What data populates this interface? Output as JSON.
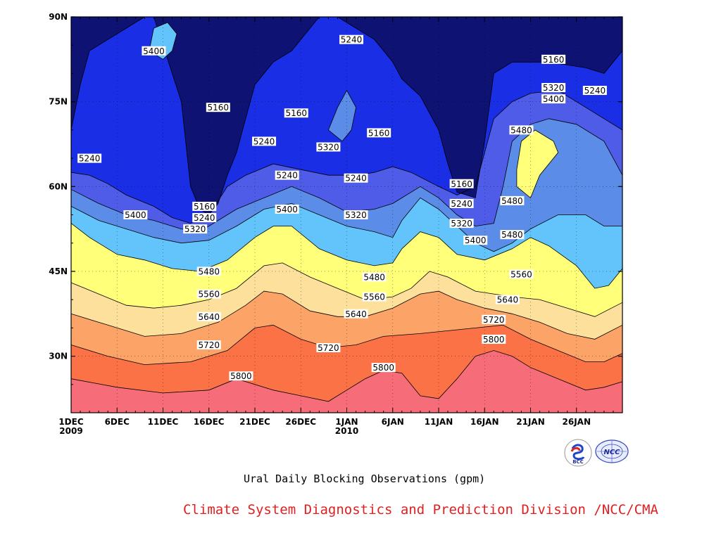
{
  "chart_data": {
    "type": "contour",
    "title": "Ural Daily Blocking Observations (gpm)",
    "x_ticks": [
      "1DEC\n2009",
      "6DEC",
      "11DEC",
      "16DEC",
      "21DEC",
      "26DEC",
      "1JAN\n2010",
      "6JAN",
      "11JAN",
      "16JAN",
      "21JAN",
      "26JAN"
    ],
    "x_range_days": [
      0,
      60
    ],
    "y_ticks": [
      "30N",
      "45N",
      "60N",
      "75N",
      "90N"
    ],
    "y_tick_values": [
      30,
      45,
      60,
      75,
      90
    ],
    "ylim": [
      20,
      90
    ],
    "levels": [
      5160,
      5240,
      5320,
      5400,
      5480,
      5560,
      5640,
      5720,
      5800
    ],
    "level_colors": [
      "#0d1273",
      "#1a2ee6",
      "#4f5ce8",
      "#5b8de8",
      "#62c4fb",
      "#ffff7a",
      "#fde09b",
      "#fca468",
      "#fb7247",
      "#f66c78"
    ],
    "grid": "dotted",
    "contour_labels": [
      {
        "text": "5240",
        "x": 2,
        "y": 65
      },
      {
        "text": "5400",
        "x": 9,
        "y": 84
      },
      {
        "text": "5160",
        "x": 16,
        "y": 74
      },
      {
        "text": "5240",
        "x": 21,
        "y": 68
      },
      {
        "text": "5160",
        "x": 24.5,
        "y": 73
      },
      {
        "text": "5320",
        "x": 28,
        "y": 67
      },
      {
        "text": "5240",
        "x": 30.5,
        "y": 86
      },
      {
        "text": "5160",
        "x": 33.5,
        "y": 69.5
      },
      {
        "text": "5240",
        "x": 23.5,
        "y": 62
      },
      {
        "text": "5240",
        "x": 31,
        "y": 61.5
      },
      {
        "text": "5400",
        "x": 7,
        "y": 55
      },
      {
        "text": "5160",
        "x": 14.5,
        "y": 56.5
      },
      {
        "text": "5240",
        "x": 14.5,
        "y": 54.5
      },
      {
        "text": "5320",
        "x": 13.5,
        "y": 52.5
      },
      {
        "text": "5400",
        "x": 23.5,
        "y": 56
      },
      {
        "text": "5320",
        "x": 31,
        "y": 55
      },
      {
        "text": "5160",
        "x": 42.5,
        "y": 60.5
      },
      {
        "text": "5240",
        "x": 42.5,
        "y": 57
      },
      {
        "text": "5320",
        "x": 42.5,
        "y": 53.5
      },
      {
        "text": "5400",
        "x": 44,
        "y": 50.5
      },
      {
        "text": "5480",
        "x": 49,
        "y": 70
      },
      {
        "text": "5480",
        "x": 48,
        "y": 57.5
      },
      {
        "text": "5480",
        "x": 48,
        "y": 51.5
      },
      {
        "text": "5160",
        "x": 52.5,
        "y": 82.5
      },
      {
        "text": "5320",
        "x": 52.5,
        "y": 77.5
      },
      {
        "text": "5400",
        "x": 52.5,
        "y": 75.5
      },
      {
        "text": "5240",
        "x": 57,
        "y": 77
      },
      {
        "text": "5480",
        "x": 15,
        "y": 45
      },
      {
        "text": "5560",
        "x": 15,
        "y": 41
      },
      {
        "text": "5640",
        "x": 15,
        "y": 37
      },
      {
        "text": "5720",
        "x": 15,
        "y": 32
      },
      {
        "text": "5800",
        "x": 18.5,
        "y": 26.5
      },
      {
        "text": "5480",
        "x": 33,
        "y": 44
      },
      {
        "text": "5560",
        "x": 33,
        "y": 40.5
      },
      {
        "text": "5640",
        "x": 31,
        "y": 37.5
      },
      {
        "text": "5720",
        "x": 28,
        "y": 31.5
      },
      {
        "text": "5800",
        "x": 34,
        "y": 28
      },
      {
        "text": "5560",
        "x": 49,
        "y": 44.5
      },
      {
        "text": "5640",
        "x": 47.5,
        "y": 40
      },
      {
        "text": "5720",
        "x": 46,
        "y": 36.5
      },
      {
        "text": "5800",
        "x": 46,
        "y": 33
      }
    ]
  },
  "footer": {
    "caption": "Ural Daily Blocking Observations (gpm)",
    "credit": "Climate System Diagnostics and Prediction Division /NCC/CMA"
  },
  "logos": {
    "bcc_text": "BCC",
    "ncc_text": "NCC"
  },
  "colors": {
    "credit": "#e02020",
    "axis": "#000000"
  }
}
